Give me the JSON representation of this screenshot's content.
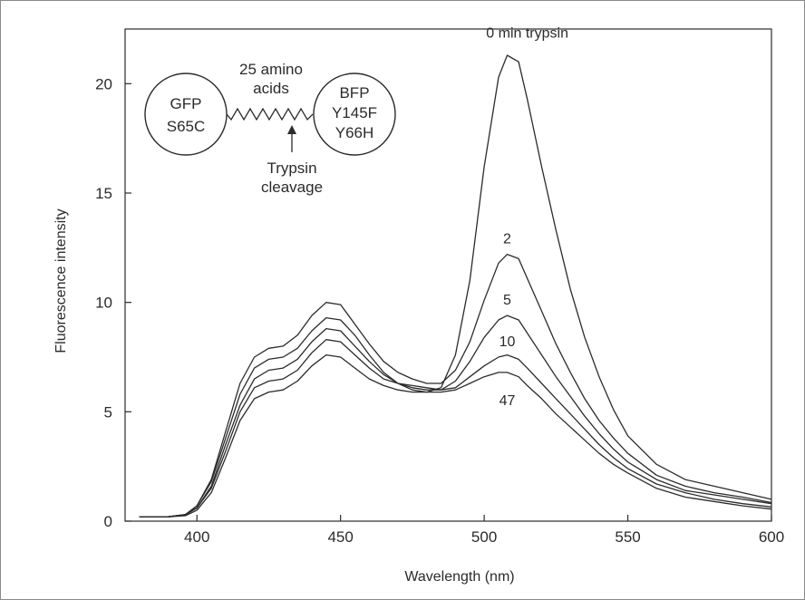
{
  "chart_data": {
    "type": "line",
    "title": "",
    "xlabel": "Wavelength (nm)",
    "ylabel": "Fluorescence intensity",
    "xlim": [
      375,
      600
    ],
    "ylim": [
      0,
      22.5
    ],
    "xticks": [
      400,
      450,
      500,
      550,
      600
    ],
    "yticks": [
      0,
      5,
      10,
      15,
      20
    ],
    "grid": false,
    "legend": "none",
    "series_colors": "#2b2b2b",
    "series": [
      {
        "name": "0 min trypsin",
        "points": [
          [
            380,
            0.2
          ],
          [
            390,
            0.2
          ],
          [
            396,
            0.3
          ],
          [
            400,
            0.7
          ],
          [
            405,
            1.8
          ],
          [
            410,
            3.8
          ],
          [
            415,
            5.8
          ],
          [
            420,
            7.0
          ],
          [
            425,
            7.4
          ],
          [
            430,
            7.5
          ],
          [
            435,
            7.9
          ],
          [
            440,
            8.7
          ],
          [
            445,
            9.3
          ],
          [
            450,
            9.2
          ],
          [
            455,
            8.5
          ],
          [
            460,
            7.6
          ],
          [
            465,
            6.8
          ],
          [
            470,
            6.3
          ],
          [
            475,
            6.0
          ],
          [
            480,
            5.9
          ],
          [
            485,
            6.1
          ],
          [
            490,
            7.6
          ],
          [
            495,
            11.0
          ],
          [
            500,
            16.2
          ],
          [
            505,
            20.3
          ],
          [
            508,
            21.3
          ],
          [
            512,
            21.0
          ],
          [
            515,
            19.3
          ],
          [
            520,
            16.2
          ],
          [
            525,
            13.3
          ],
          [
            530,
            10.6
          ],
          [
            535,
            8.4
          ],
          [
            540,
            6.6
          ],
          [
            545,
            5.1
          ],
          [
            550,
            3.9
          ],
          [
            560,
            2.6
          ],
          [
            570,
            1.9
          ],
          [
            580,
            1.6
          ],
          [
            590,
            1.3
          ],
          [
            600,
            1.0
          ]
        ]
      },
      {
        "name": "2",
        "points": [
          [
            380,
            0.2
          ],
          [
            390,
            0.2
          ],
          [
            396,
            0.3
          ],
          [
            400,
            0.7
          ],
          [
            405,
            1.9
          ],
          [
            410,
            4.1
          ],
          [
            415,
            6.3
          ],
          [
            420,
            7.5
          ],
          [
            425,
            7.9
          ],
          [
            430,
            8.0
          ],
          [
            435,
            8.5
          ],
          [
            440,
            9.4
          ],
          [
            445,
            10.0
          ],
          [
            450,
            9.9
          ],
          [
            455,
            9.0
          ],
          [
            460,
            8.1
          ],
          [
            465,
            7.3
          ],
          [
            470,
            6.8
          ],
          [
            475,
            6.5
          ],
          [
            480,
            6.3
          ],
          [
            485,
            6.3
          ],
          [
            490,
            6.9
          ],
          [
            495,
            8.2
          ],
          [
            500,
            10.1
          ],
          [
            505,
            11.8
          ],
          [
            508,
            12.2
          ],
          [
            512,
            12.0
          ],
          [
            515,
            11.1
          ],
          [
            520,
            9.6
          ],
          [
            525,
            8.1
          ],
          [
            530,
            6.8
          ],
          [
            535,
            5.6
          ],
          [
            540,
            4.6
          ],
          [
            545,
            3.8
          ],
          [
            550,
            3.1
          ],
          [
            560,
            2.1
          ],
          [
            570,
            1.6
          ],
          [
            580,
            1.3
          ],
          [
            590,
            1.1
          ],
          [
            600,
            0.85
          ]
        ]
      },
      {
        "name": "5",
        "points": [
          [
            380,
            0.2
          ],
          [
            390,
            0.2
          ],
          [
            396,
            0.3
          ],
          [
            400,
            0.6
          ],
          [
            405,
            1.6
          ],
          [
            410,
            3.5
          ],
          [
            415,
            5.3
          ],
          [
            420,
            6.5
          ],
          [
            425,
            6.9
          ],
          [
            430,
            7.0
          ],
          [
            435,
            7.4
          ],
          [
            440,
            8.2
          ],
          [
            445,
            8.8
          ],
          [
            450,
            8.7
          ],
          [
            455,
            8.0
          ],
          [
            460,
            7.3
          ],
          [
            465,
            6.7
          ],
          [
            470,
            6.3
          ],
          [
            475,
            6.1
          ],
          [
            480,
            6.0
          ],
          [
            485,
            6.0
          ],
          [
            490,
            6.4
          ],
          [
            495,
            7.3
          ],
          [
            500,
            8.4
          ],
          [
            505,
            9.2
          ],
          [
            508,
            9.4
          ],
          [
            512,
            9.2
          ],
          [
            515,
            8.6
          ],
          [
            520,
            7.6
          ],
          [
            525,
            6.6
          ],
          [
            530,
            5.7
          ],
          [
            535,
            4.8
          ],
          [
            540,
            4.0
          ],
          [
            545,
            3.3
          ],
          [
            550,
            2.7
          ],
          [
            560,
            1.9
          ],
          [
            570,
            1.4
          ],
          [
            580,
            1.2
          ],
          [
            590,
            1.0
          ],
          [
            600,
            0.8
          ]
        ]
      },
      {
        "name": "10",
        "points": [
          [
            380,
            0.2
          ],
          [
            390,
            0.2
          ],
          [
            396,
            0.3
          ],
          [
            400,
            0.6
          ],
          [
            405,
            1.5
          ],
          [
            410,
            3.2
          ],
          [
            415,
            5.0
          ],
          [
            420,
            6.1
          ],
          [
            425,
            6.4
          ],
          [
            430,
            6.5
          ],
          [
            435,
            6.9
          ],
          [
            440,
            7.7
          ],
          [
            445,
            8.3
          ],
          [
            450,
            8.2
          ],
          [
            455,
            7.6
          ],
          [
            460,
            7.0
          ],
          [
            465,
            6.5
          ],
          [
            470,
            6.3
          ],
          [
            475,
            6.2
          ],
          [
            480,
            6.1
          ],
          [
            485,
            6.0
          ],
          [
            490,
            6.1
          ],
          [
            495,
            6.6
          ],
          [
            500,
            7.1
          ],
          [
            505,
            7.5
          ],
          [
            508,
            7.6
          ],
          [
            512,
            7.4
          ],
          [
            515,
            7.0
          ],
          [
            520,
            6.3
          ],
          [
            525,
            5.6
          ],
          [
            530,
            4.9
          ],
          [
            535,
            4.2
          ],
          [
            540,
            3.5
          ],
          [
            545,
            2.9
          ],
          [
            550,
            2.4
          ],
          [
            560,
            1.7
          ],
          [
            570,
            1.3
          ],
          [
            580,
            1.0
          ],
          [
            590,
            0.8
          ],
          [
            600,
            0.65
          ]
        ]
      },
      {
        "name": "47",
        "points": [
          [
            380,
            0.2
          ],
          [
            390,
            0.2
          ],
          [
            396,
            0.25
          ],
          [
            400,
            0.5
          ],
          [
            405,
            1.3
          ],
          [
            410,
            2.9
          ],
          [
            415,
            4.6
          ],
          [
            420,
            5.6
          ],
          [
            425,
            5.9
          ],
          [
            430,
            6.0
          ],
          [
            435,
            6.4
          ],
          [
            440,
            7.1
          ],
          [
            445,
            7.6
          ],
          [
            450,
            7.5
          ],
          [
            455,
            7.0
          ],
          [
            460,
            6.5
          ],
          [
            465,
            6.2
          ],
          [
            470,
            6.0
          ],
          [
            475,
            5.9
          ],
          [
            480,
            5.9
          ],
          [
            485,
            5.9
          ],
          [
            490,
            6.0
          ],
          [
            495,
            6.3
          ],
          [
            500,
            6.6
          ],
          [
            505,
            6.8
          ],
          [
            508,
            6.8
          ],
          [
            512,
            6.6
          ],
          [
            515,
            6.2
          ],
          [
            520,
            5.6
          ],
          [
            525,
            4.9
          ],
          [
            530,
            4.3
          ],
          [
            535,
            3.7
          ],
          [
            540,
            3.1
          ],
          [
            545,
            2.6
          ],
          [
            550,
            2.2
          ],
          [
            560,
            1.5
          ],
          [
            570,
            1.1
          ],
          [
            580,
            0.9
          ],
          [
            590,
            0.7
          ],
          [
            600,
            0.55
          ]
        ]
      }
    ],
    "series_labels": [
      {
        "text": "0 min trypsin",
        "x": 515,
        "y": 22.1
      },
      {
        "text": "2",
        "x": 508,
        "y": 12.7
      },
      {
        "text": "5",
        "x": 508,
        "y": 9.9
      },
      {
        "text": "10",
        "x": 508,
        "y": 8.0
      },
      {
        "text": "47",
        "x": 508,
        "y": 5.3
      }
    ]
  },
  "inset": {
    "left_circle_lines": [
      "GFP",
      "S65C"
    ],
    "linker_lines": [
      "25 amino",
      "acids"
    ],
    "right_circle_lines": [
      "BFP",
      "Y145F",
      "Y66H"
    ],
    "cleavage_lines": [
      "Trypsin",
      "cleavage"
    ]
  }
}
